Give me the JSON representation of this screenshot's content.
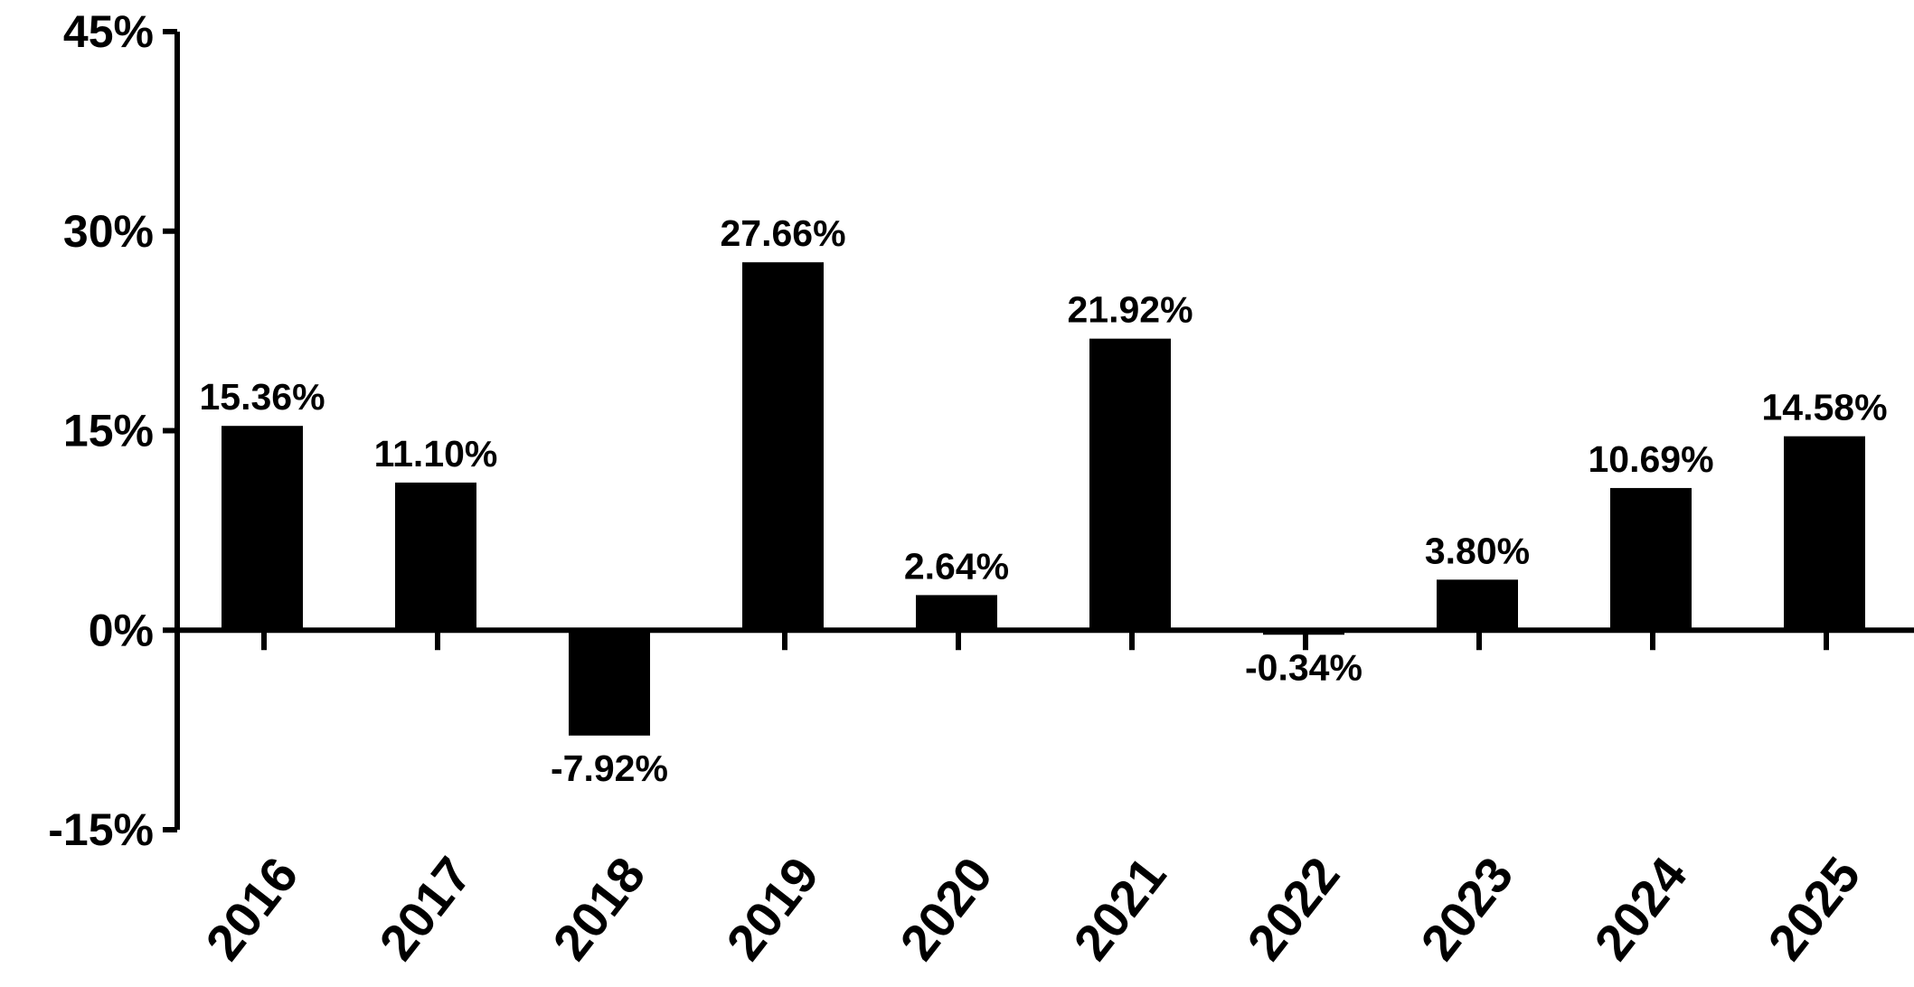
{
  "chart_data": {
    "type": "bar",
    "categories": [
      "2016",
      "2017",
      "2018",
      "2019",
      "2020",
      "2021",
      "2022",
      "2023",
      "2024",
      "2025"
    ],
    "values": [
      15.36,
      11.1,
      -7.92,
      27.66,
      2.64,
      21.92,
      -0.34,
      3.8,
      10.69,
      14.58
    ],
    "data_labels": [
      "15.36%",
      "11.10%",
      "-7.92%",
      "27.66%",
      "2.64%",
      "21.92%",
      "-0.34%",
      "3.80%",
      "10.69%",
      "14.58%"
    ],
    "ylim": [
      -15,
      45
    ],
    "yticks": [
      -15,
      0,
      15,
      30,
      45
    ],
    "ytick_labels": [
      "-15%",
      "0%",
      "15%",
      "30%",
      "45%"
    ],
    "title": "",
    "xlabel": "",
    "ylabel": "",
    "grid": false,
    "legend": "none",
    "colors": {
      "bar": "#000000",
      "axis": "#000000",
      "background": "#ffffff"
    }
  }
}
